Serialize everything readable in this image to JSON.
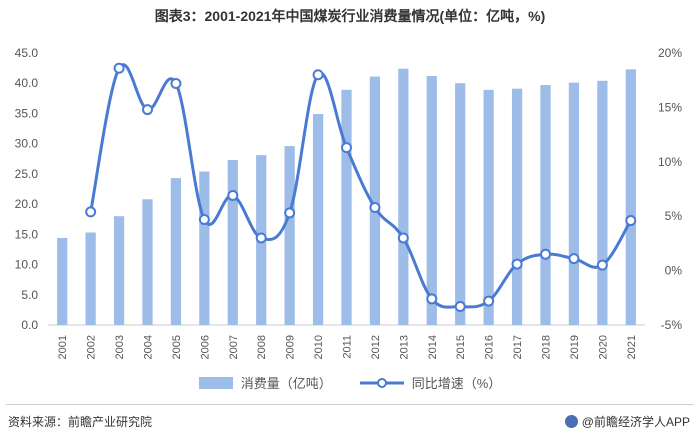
{
  "header": {
    "title": "图表3：2001-2021年中国煤炭行业消费量情况(单位：亿吨，%)"
  },
  "footer": {
    "source": "资料来源：前瞻产业研究院",
    "brand": "@前瞻经济学人APP"
  },
  "colors": {
    "bar": "#9dbce8",
    "line": "#4a7bd2",
    "marker_fill": "#ffffff",
    "axis_text": "#555555",
    "gridline": "#e6e6e6"
  },
  "chart_data": {
    "type": "bar",
    "categories": [
      "2001",
      "2002",
      "2003",
      "2004",
      "2005",
      "2006",
      "2007",
      "2008",
      "2009",
      "2010",
      "2011",
      "2012",
      "2013",
      "2014",
      "2015",
      "2016",
      "2017",
      "2018",
      "2019",
      "2020",
      "2021"
    ],
    "series": [
      {
        "name": "消费量（亿吨）",
        "type": "bar",
        "axis": "left",
        "values": [
          14.4,
          15.3,
          18.0,
          20.8,
          24.3,
          25.4,
          27.3,
          28.1,
          29.6,
          34.9,
          38.9,
          41.1,
          42.4,
          41.2,
          40.0,
          38.9,
          39.1,
          39.7,
          40.1,
          40.4,
          42.3
        ]
      },
      {
        "name": "同比增速（%）",
        "type": "line",
        "axis": "right",
        "values": [
          null,
          5.4,
          18.6,
          14.8,
          17.2,
          4.7,
          6.9,
          3.0,
          5.3,
          18.0,
          11.3,
          5.8,
          3.0,
          -2.6,
          -3.3,
          -2.8,
          0.6,
          1.5,
          1.1,
          0.5,
          4.6
        ]
      }
    ],
    "left_axis": {
      "min": 0,
      "max": 45,
      "step": 5,
      "ticks": [
        "0.0",
        "5.0",
        "10.0",
        "15.0",
        "20.0",
        "25.0",
        "30.0",
        "35.0",
        "40.0",
        "45.0"
      ]
    },
    "right_axis": {
      "min": -5,
      "max": 20,
      "step": 5,
      "ticks": [
        "-5%",
        "0%",
        "5%",
        "10%",
        "15%",
        "20%"
      ]
    },
    "legend_position": "bottom",
    "grid": false
  }
}
